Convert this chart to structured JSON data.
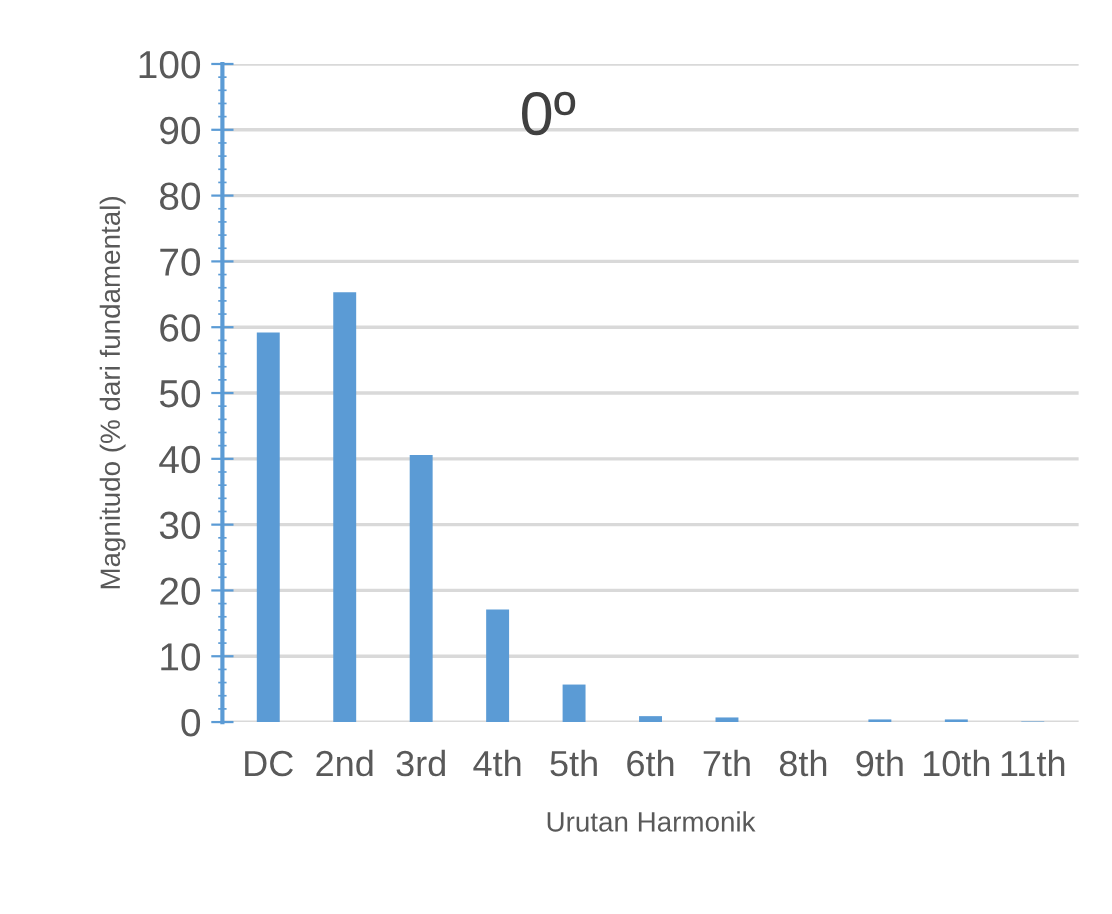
{
  "chart_data": {
    "type": "bar",
    "title": "0º",
    "xlabel": "Urutan Harmonik",
    "ylabel": "Magnitudo (% dari fundamental)",
    "categories": [
      "DC",
      "2nd",
      "3rd",
      "4th",
      "5th",
      "6th",
      "7th",
      "8th",
      "9th",
      "10th",
      "11th"
    ],
    "values": [
      59.2,
      65.3,
      40.6,
      17.1,
      5.7,
      0.9,
      0.7,
      0,
      0.4,
      0.4,
      0.1
    ],
    "color": "#5b9bd5",
    "ylim": [
      0,
      100
    ],
    "yticks": [
      0,
      10,
      20,
      30,
      40,
      50,
      60,
      70,
      80,
      90,
      100
    ],
    "grid": "y"
  }
}
